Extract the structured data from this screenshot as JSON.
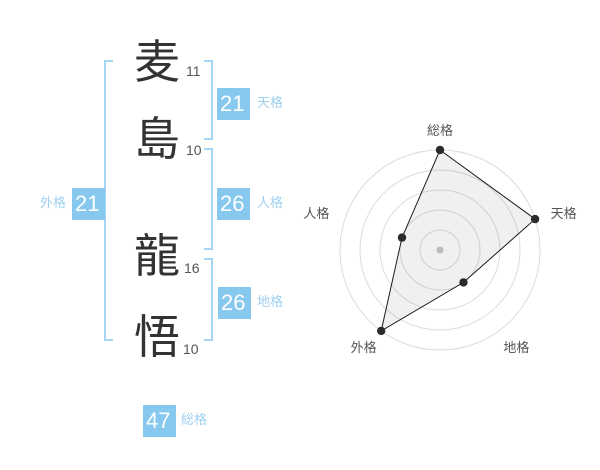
{
  "colors": {
    "badge_bg": "#86c8ee",
    "badge_text": "#ffffff",
    "kaku_label": "#9fd0f0",
    "bracket": "#a5d6f3",
    "kanji": "#333333",
    "stroke_number": "#555555",
    "radar_ring": "#dcdcdc",
    "radar_label": "#555555",
    "radar_line": "#1a1a1a",
    "radar_dot": "#2b2b2b",
    "radar_center_dot": "#bbbbbb",
    "radar_fill": "#000000"
  },
  "name": {
    "characters": [
      {
        "char": "麦",
        "strokes": "11"
      },
      {
        "char": "島",
        "strokes": "10"
      },
      {
        "char": "龍",
        "strokes": "16"
      },
      {
        "char": "悟",
        "strokes": "10"
      }
    ]
  },
  "kaku": {
    "tenkaku": {
      "label": "天格",
      "value": "21"
    },
    "jinkaku": {
      "label": "人格",
      "value": "26"
    },
    "chikaku": {
      "label": "地格",
      "value": "26"
    },
    "gaikaku": {
      "label": "外格",
      "value": "21"
    },
    "soukaku": {
      "label": "総格",
      "value": "47"
    }
  },
  "chart_data": {
    "type": "radar",
    "title": "",
    "categories": [
      "総格",
      "天格",
      "地格",
      "外格",
      "人格"
    ],
    "values": [
      5,
      5,
      2,
      5,
      2
    ],
    "max": 5,
    "rings": 5,
    "start_angle_deg": 90,
    "direction": "clockwise",
    "grid": "circular",
    "legend": false
  }
}
